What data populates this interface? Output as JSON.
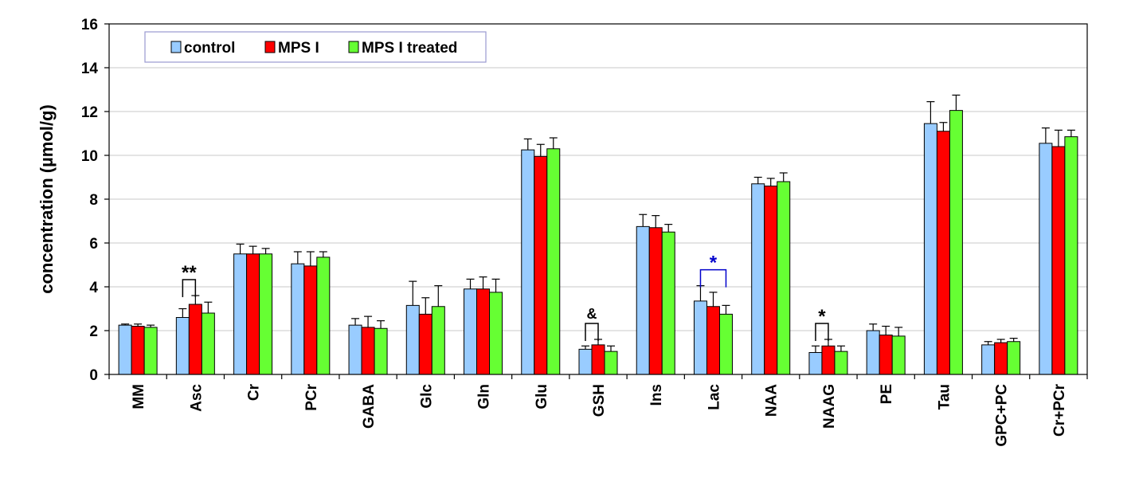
{
  "chart_data": {
    "type": "bar",
    "title": "",
    "xlabel": "",
    "ylabel": "concentration (µmol/g)",
    "ylim": [
      0,
      16
    ],
    "yticks": [
      0,
      2,
      4,
      6,
      8,
      10,
      12,
      14,
      16
    ],
    "grid": "horizontal",
    "legend_position": "top-left",
    "categories": [
      "MM",
      "Asc",
      "Cr",
      "PCr",
      "GABA",
      "Glc",
      "Gln",
      "Glu",
      "GSH",
      "Ins",
      "Lac",
      "NAA",
      "NAAG",
      "PE",
      "Tau",
      "GPC+PC",
      "Cr+PCr"
    ],
    "series": [
      {
        "name": "control",
        "color": "#99CCFF",
        "values": [
          2.25,
          2.6,
          5.5,
          5.05,
          2.25,
          3.15,
          3.9,
          10.25,
          1.15,
          6.75,
          3.35,
          8.7,
          1.0,
          2.0,
          11.45,
          1.35,
          10.55
        ],
        "errors": [
          0.05,
          0.4,
          0.45,
          0.55,
          0.3,
          1.1,
          0.45,
          0.5,
          0.15,
          0.55,
          0.7,
          0.3,
          0.3,
          0.3,
          1.0,
          0.15,
          0.7
        ]
      },
      {
        "name": "MPS I",
        "color": "#FF0000",
        "values": [
          2.2,
          3.2,
          5.5,
          4.95,
          2.15,
          2.75,
          3.9,
          9.95,
          1.35,
          6.7,
          3.1,
          8.6,
          1.3,
          1.8,
          11.1,
          1.45,
          10.4
        ],
        "errors": [
          0.1,
          0.4,
          0.35,
          0.65,
          0.5,
          0.75,
          0.55,
          0.55,
          0.25,
          0.55,
          0.65,
          0.35,
          0.3,
          0.4,
          0.4,
          0.15,
          0.75
        ]
      },
      {
        "name": "MPS I treated",
        "color": "#66FF33",
        "values": [
          2.15,
          2.8,
          5.5,
          5.35,
          2.1,
          3.1,
          3.75,
          10.3,
          1.05,
          6.5,
          2.75,
          8.8,
          1.05,
          1.75,
          12.05,
          1.5,
          10.85
        ],
        "errors": [
          0.1,
          0.5,
          0.25,
          0.25,
          0.35,
          0.95,
          0.6,
          0.5,
          0.25,
          0.35,
          0.4,
          0.4,
          0.25,
          0.4,
          0.7,
          0.15,
          0.3
        ]
      }
    ],
    "annotations": [
      {
        "category": "Asc",
        "from_series": 0,
        "to_series": 1,
        "label": "**",
        "color": "#000000"
      },
      {
        "category": "GSH",
        "from_series": 0,
        "to_series": 1,
        "label": "&",
        "color": "#000000"
      },
      {
        "category": "Lac",
        "from_series": 0,
        "to_series": 2,
        "label": "*",
        "color": "#0000CC"
      },
      {
        "category": "NAAG",
        "from_series": 0,
        "to_series": 1,
        "label": "*",
        "color": "#000000"
      }
    ]
  }
}
